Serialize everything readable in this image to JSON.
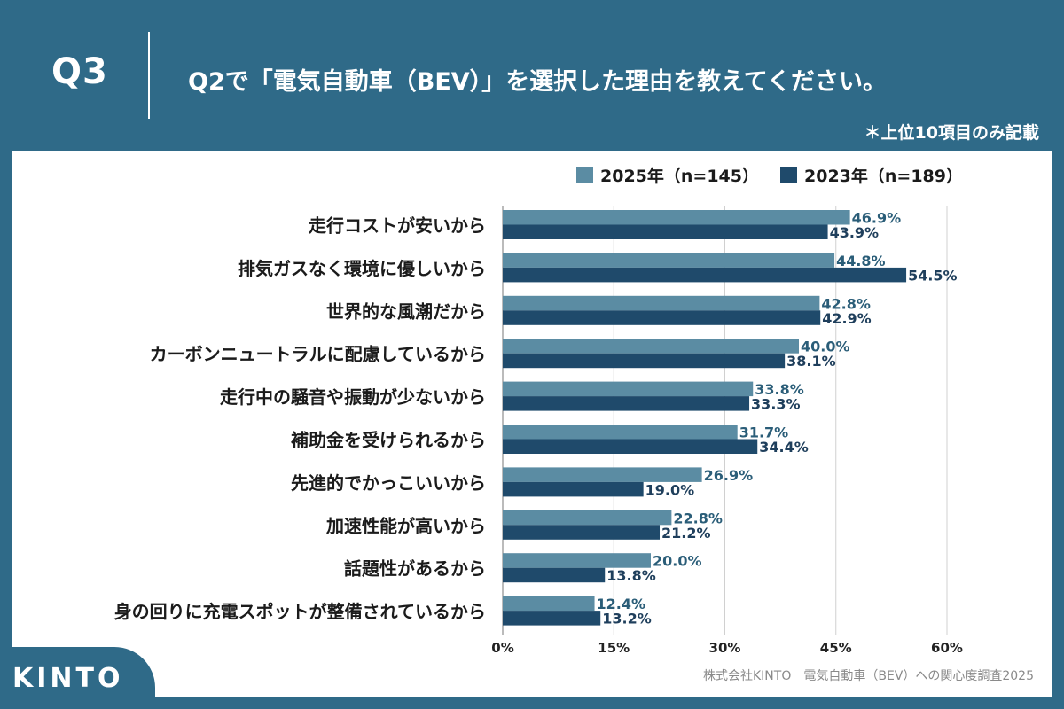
{
  "header": {
    "question": "Q3",
    "title": "Q2で「電気自動車（BEV）」を選択した理由を教えてください。",
    "note": "＊上位10項目のみ記載"
  },
  "colors": {
    "background": "#2f6a88",
    "series2025": "#5b8ca3",
    "series2023": "#1f4a6b"
  },
  "footer": {
    "logo": "KINTO",
    "source": "株式会社KINTO　電気自動車（BEV）への関心度調査2025"
  },
  "chart_data": {
    "type": "bar",
    "orientation": "horizontal",
    "title": "",
    "xlabel": "",
    "ylabel": "",
    "xlim": [
      0,
      60
    ],
    "xticks": [
      "0%",
      "15%",
      "30%",
      "45%",
      "60%"
    ],
    "grid": true,
    "legend_position": "top-right",
    "categories": [
      "走行コストが安いから",
      "排気ガスなく環境に優しいから",
      "世界的な風潮だから",
      "カーボンニュートラルに配慮しているから",
      "走行中の騒音や振動が少ないから",
      "補助金を受けられるから",
      "先進的でかっこいいから",
      "加速性能が高いから",
      "話題性があるから",
      "身の回りに充電スポットが整備されているから"
    ],
    "series": [
      {
        "name": "2025年（n=145）",
        "values": [
          46.9,
          44.8,
          42.8,
          40.0,
          33.8,
          31.7,
          26.9,
          22.8,
          20.0,
          12.4
        ],
        "labels": [
          "46.9%",
          "44.8%",
          "42.8%",
          "40.0%",
          "33.8%",
          "31.7%",
          "26.9%",
          "22.8%",
          "20.0%",
          "12.4%"
        ]
      },
      {
        "name": "2023年（n=189）",
        "values": [
          43.9,
          54.5,
          42.9,
          38.1,
          33.3,
          34.4,
          19.0,
          21.2,
          13.8,
          13.2
        ],
        "labels": [
          "43.9%",
          "54.5%",
          "42.9%",
          "38.1%",
          "33.3%",
          "34.4%",
          "19.0%",
          "21.2%",
          "13.8%",
          "13.2%"
        ]
      }
    ]
  }
}
